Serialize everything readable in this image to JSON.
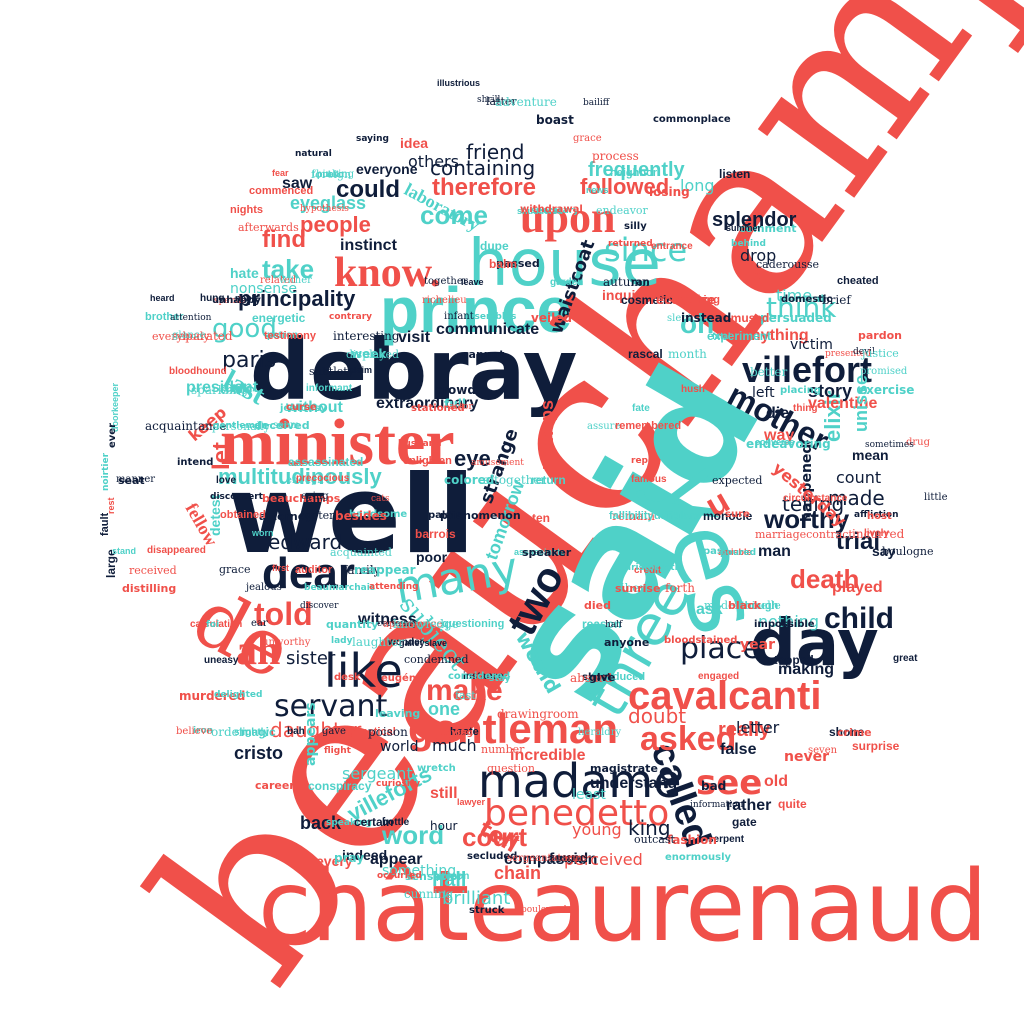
{
  "palette": {
    "red": "#f0504a",
    "teal": "#4fd1c8",
    "navy": "#0f1d3a",
    "background": "#ffffff"
  },
  "words": {
    "beauchamp": "beauchamp",
    "chateaurenaud": "châteaurenaud",
    "said": "said",
    "well": "well",
    "debray": "debray",
    "minister": "minister",
    "house": "house",
    "prince": "prince",
    "yes": "yes",
    "de": "de",
    "day": "day",
    "three": "three",
    "madame": "madame",
    "gentleman": "gentleman",
    "cavalcanti": "cavalcanti",
    "know": "know.",
    "upon": "upon",
    "villefort": "villefort",
    "mother": "mother",
    "two": "two",
    "many": "many",
    "dear": "dear",
    "like": "like",
    "ah": "ah",
    "told": "told",
    "called": "called",
    "benedetto": "benedetto",
    "asked": "asked",
    "see": "see",
    "make": "make",
    "servant": "servant",
    "multitudinously": "multitudinously",
    "principality": "principality",
    "could": "could",
    "since": "since",
    "come": "come",
    "people": "people",
    "take": "take",
    "find": "find",
    "good": "good",
    "last": "last",
    "think": "think",
    "child": "child",
    "death": "death",
    "place": "place",
    "worthy": "worthy",
    "trial": "trial",
    "court": "court",
    "word": "word",
    "u": "u",
    "oh": "oh",
    "therefore": "therefore",
    "followed": "followed",
    "frequently": "frequently",
    "friend": "friend",
    "laboratory": "laboratory",
    "containing": "containing",
    "eyeglass": "eyeglass",
    "instinct": "instinct",
    "splendor": "splendor",
    "communicate": "communicate",
    "extraordinary": "extraordinary",
    "telling": "telling",
    "elixir": "elixir",
    "valentine": "valentine",
    "villeforts": "villeforts",
    "daughter": "daughter",
    "cristo": "cristo",
    "edward": "edward",
    "perhaps": "perhaps",
    "strange": "strange",
    "tomorrow": "tomorrow",
    "would": "would",
    "subject": "subject",
    "witness": "witness",
    "sister": "sister",
    "paris": "paris",
    "president": "president",
    "without": "without",
    "visit": "visit",
    "tell": "tell",
    "still": "still",
    "king": "king",
    "chain": "chain",
    "hall": "hall",
    "brilliant": "brilliant",
    "compassion": "compassion",
    "incredible": "incredible",
    "understand": "understand",
    "really": "really",
    "doubt": "doubt",
    "false": "false",
    "letter": "letter",
    "never": "never",
    "making": "making",
    "played": "played",
    "nothing": "nothing",
    "year": "year",
    "ask": "ask",
    "made": "made",
    "let": "let",
    "keep": "keep",
    "fellow": "fellow",
    "detest": "detest",
    "eye": "eye",
    "one": "one",
    "much": "much",
    "old": "old",
    "rather": "rather",
    "young": "young",
    "perceived": "perceived",
    "indeed": "indeed",
    "back": "back",
    "appear": "appear",
    "every": "every",
    "something": "something",
    "sergeant": "sergeant",
    "appears": "appears",
    "world": "world",
    "happened": "happened",
    "yesterday": "yesterday",
    "count": "count",
    "mean": "mean",
    "die": "die",
    "way": "way",
    "story": "story",
    "left": "left",
    "anything": "anything",
    "victim": "victim",
    "time": "time",
    "get": "get",
    "drop": "drop",
    "inquiry": "inquiry",
    "long": "long",
    "others": "others",
    "everyone": "everyone",
    "idea": "idea",
    "saw": "saw",
    "hate": "hate",
    "nonsense": "nonsense",
    "say": "say",
    "man": "man",
    "full": "full",
    "poor": "poor",
    "ten": "ten",
    "waistcoat": "waistcoat",
    "least": "least",
    "hour": "hour",
    "surprise": "surprise",
    "unisse": "unisse",
    "small": [
      "heard",
      "week",
      "order",
      "quite",
      "found",
      "little",
      "fault",
      "sight",
      "drug",
      "though",
      "placing",
      "brief",
      "cosmetic",
      "throne",
      "presented",
      "monocle",
      "intend",
      "latter",
      "dramas",
      "speaking",
      "interesting",
      "credit",
      "resembles",
      "spends",
      "large",
      "noirtier",
      "september",
      "doorkeeper",
      "losing",
      "endeavor",
      "assassinate",
      "attorney",
      "afterwards",
      "questioning",
      "flight",
      "together",
      "galleyslave",
      "sensation",
      "marriagecontract",
      "amiable",
      "comment",
      "foreign",
      "listen",
      "persuaded",
      "remain",
      "person",
      "secluded",
      "separated",
      "barrois",
      "phenomenon",
      "slept",
      "fate",
      "pardon",
      "caderousse",
      "generation",
      "giant",
      "seeing",
      "appeared",
      "pray",
      "rope",
      "wonder",
      "affliction",
      "devil",
      "shone",
      "crowd",
      "personally",
      "worn",
      "behind",
      "genealogist",
      "instance",
      "magistrate",
      "liberal",
      "illustrious",
      "beauchamps",
      "related",
      "public",
      "cannot",
      "everybody",
      "tremendous",
      "poured",
      "acquaintance",
      "magic",
      "amends",
      "drawingroom",
      "dupe",
      "experienced",
      "heraldry",
      "danglars",
      "leaving",
      "italian",
      "brother",
      "colored",
      "promised",
      "haste",
      "handsome",
      "displayed",
      "famous",
      "husband",
      "bankruptcy",
      "auditor",
      "paper",
      "boulogne",
      "talking",
      "palais",
      "condemned",
      "great",
      "secretary",
      "expected",
      "experiment",
      "peculiar",
      "signature",
      "disappeared",
      "bloodstained",
      "divina",
      "shuddered",
      "occurred",
      "number",
      "gate",
      "patrician",
      "family",
      "noble",
      "veiled",
      "hypothesis",
      "claim",
      "crime",
      "certainly",
      "cheated",
      "bad",
      "infant",
      "serpent",
      "beaumarchais",
      "altogether",
      "slightly",
      "distilling",
      "saintméran",
      "crown",
      "lesson",
      "spoke",
      "always",
      "reappear",
      "received",
      "produced",
      "short",
      "privileged",
      "obtained",
      "aristocratic",
      "question",
      "lively",
      "jealousy",
      "acquainted",
      "energetic",
      "unhappy",
      "seven",
      "especial",
      "silly",
      "magnificent",
      "nobleman",
      "curiosity",
      "sometimes",
      "patron",
      "fashion",
      "justice",
      "calculation",
      "general",
      "rebutted",
      "stopped",
      "passed",
      "absurd",
      "first",
      "fortune",
      "cunning",
      "arithmetical",
      "paying",
      "boulevard",
      "fallibility",
      "attending",
      "enough",
      "bottle",
      "natural",
      "jealous",
      "neighbor",
      "recognize",
      "attention",
      "accused",
      "eugénie",
      "mademoiselle",
      "hush",
      "wretch",
      "richelieu",
      "amused",
      "boast",
      "forth",
      "testimony",
      "considered",
      "possession",
      "reason",
      "disconcert",
      "better",
      "entrance",
      "quantity",
      "assure",
      "engaged",
      "stay",
      "appearance",
      "reckon",
      "pas",
      "sending",
      "continued",
      "speaker",
      "poison",
      "summer",
      "murdered",
      "actor",
      "bloodhound",
      "lady",
      "adventure",
      "balm",
      "domestic",
      "murder",
      "morning",
      "iron",
      "occupied",
      "fatal",
      "stationed",
      "seem",
      "informant",
      "black",
      "trouble",
      "converse",
      "struck",
      "information",
      "circumstance",
      "delighted",
      "autumn",
      "sufficient",
      "give",
      "grace",
      "art",
      "saying",
      "amusement",
      "garden",
      "career",
      "glance",
      "assassinated",
      "terror",
      "subtlety",
      "conspiracy",
      "host",
      "tried",
      "enemy",
      "contrary",
      "knowledge",
      "repeat",
      "enormously",
      "phrenological",
      "extra",
      "impossible",
      "bailiff",
      "nights",
      "deceived",
      "sparkling",
      "longer",
      "allow",
      "thinking",
      "enlighten",
      "comrade",
      "sticking",
      "shall",
      "withdrawal",
      "month",
      "news",
      "commonplace",
      "aware",
      "rascal",
      "exercise",
      "discover",
      "lawyer",
      "curse",
      "outcast",
      "invent",
      "endeavoring",
      "sergeantatarms",
      "fear",
      "sunrise",
      "fast",
      "leave",
      "returned",
      "everywhere",
      "youll",
      "instead",
      "half",
      "love",
      "ran",
      "ear",
      "bah",
      "foi",
      "eying",
      "commenced",
      "desk",
      "unworthy",
      "bet",
      "dose",
      "shrill",
      "uneasy",
      "talk",
      "cats",
      "hung",
      "died",
      "rue",
      "monte",
      "reply",
      "process",
      "thing",
      "anyone",
      "gave",
      "hospital",
      "gentlemen",
      "believe",
      "remembered",
      "speak",
      "manner",
      "certain",
      "chose",
      "wither",
      "rest",
      "besides",
      "incurred",
      "stand",
      "seat",
      "laughter",
      "return",
      "sure",
      "grace",
      "voice",
      "ever",
      "gained",
      "precocious",
      "bad"
    ]
  }
}
